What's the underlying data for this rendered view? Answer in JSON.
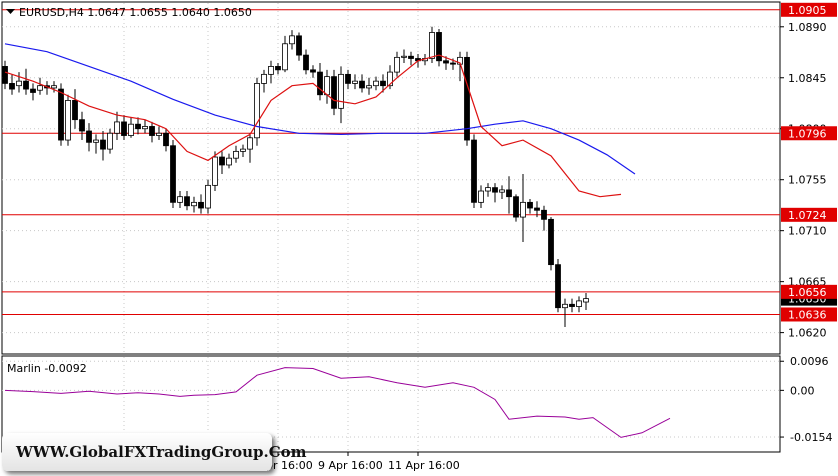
{
  "chart_window": {
    "symbol_info": "EURUSD,H4  1.0647 1.0655 1.0640 1.0650",
    "menu_arrow_icon": "triangle-down-icon"
  },
  "indicator": {
    "label": "Marlin -0.0092"
  },
  "watermark": "WWW.GlobalFXTradingGroup.Com",
  "colors": {
    "level_line": "#e00000",
    "level_box": "#e00000",
    "current_box": "#000000",
    "ma_slow": "#1a1aee",
    "ma_fast": "#dd1111",
    "oscillator": "#990099"
  },
  "chart_data": [
    {
      "type": "candlestick",
      "symbol": "EURUSD",
      "timeframe": "H4",
      "ohlc_last": {
        "open": 1.0647,
        "high": 1.0655,
        "low": 1.064,
        "close": 1.065
      },
      "ylim": [
        1.0602,
        1.0911
      ],
      "y_ticks": [
        "1.0890",
        "1.0845",
        "1.0800",
        "1.0755",
        "1.0710",
        "1.0665",
        "1.0620"
      ],
      "x_ticks": [
        {
          "index": 17,
          "label": "31 Mar 2023"
        },
        {
          "index": 29,
          "label": "3 Apr 16:00"
        },
        {
          "index": 39,
          "label": "5 Apr 16:00"
        },
        {
          "index": 49,
          "label": "9 Apr 16:00"
        },
        {
          "index": 59,
          "label": "11 Apr 16:00"
        }
      ],
      "levels": [
        {
          "value": 1.0905,
          "label": "1.0905"
        },
        {
          "value": 1.0796,
          "label": "1.0796"
        },
        {
          "value": 1.0724,
          "label": "1.0724"
        },
        {
          "value": 1.0656,
          "label": "1.0656"
        },
        {
          "value": 1.0636,
          "label": "1.0636"
        }
      ],
      "current_price": {
        "value": 1.065,
        "label": "1.0650"
      },
      "candles": [
        [
          1.0855,
          1.084,
          1.086,
          1.0835
        ],
        [
          1.084,
          1.0835,
          1.0848,
          1.083
        ],
        [
          1.0838,
          1.0842,
          1.085,
          1.0832
        ],
        [
          1.0842,
          1.0835,
          1.0853,
          1.083
        ],
        [
          1.0835,
          1.0832,
          1.084,
          1.0825
        ],
        [
          1.0834,
          1.0838,
          1.0845,
          1.083
        ],
        [
          1.0838,
          1.0836,
          1.0842,
          1.083
        ],
        [
          1.0836,
          1.0838,
          1.0842,
          1.0832
        ],
        [
          1.0835,
          1.079,
          1.084,
          1.0785
        ],
        [
          1.079,
          1.0825,
          1.083,
          1.0785
        ],
        [
          1.0825,
          1.0808,
          1.0835,
          1.08
        ],
        [
          1.0808,
          1.0798,
          1.0815,
          1.079
        ],
        [
          1.0798,
          1.0788,
          1.0805,
          1.078
        ],
        [
          1.0788,
          1.079,
          1.0795,
          1.0778
        ],
        [
          1.079,
          1.0782,
          1.0798,
          1.0772
        ],
        [
          1.0782,
          1.0796,
          1.08,
          1.0778
        ],
        [
          1.0796,
          1.0806,
          1.0815,
          1.079
        ],
        [
          1.0806,
          1.0794,
          1.0812,
          1.079
        ],
        [
          1.0794,
          1.0804,
          1.081,
          1.0792
        ],
        [
          1.0804,
          1.08,
          1.081,
          1.0795
        ],
        [
          1.08,
          1.0802,
          1.0808,
          1.0796
        ],
        [
          1.0802,
          1.0794,
          1.0806,
          1.0788
        ],
        [
          1.0794,
          1.0796,
          1.0802,
          1.079
        ],
        [
          1.0796,
          1.0785,
          1.08,
          1.078
        ],
        [
          1.0785,
          1.0735,
          1.079,
          1.073
        ],
        [
          1.0735,
          1.074,
          1.0745,
          1.073
        ],
        [
          1.074,
          1.0732,
          1.0745,
          1.0728
        ],
        [
          1.0732,
          1.0735,
          1.074,
          1.0726
        ],
        [
          1.0735,
          1.073,
          1.0742,
          1.0725
        ],
        [
          1.073,
          1.075,
          1.0755,
          1.0725
        ],
        [
          1.075,
          1.0775,
          1.078,
          1.0745
        ],
        [
          1.0775,
          1.0768,
          1.078,
          1.076
        ],
        [
          1.0768,
          1.0774,
          1.0778,
          1.0765
        ],
        [
          1.0774,
          1.078,
          1.0785,
          1.077
        ],
        [
          1.078,
          1.0782,
          1.0786,
          1.0775
        ],
        [
          1.0782,
          1.0792,
          1.0796,
          1.077
        ],
        [
          1.0792,
          1.084,
          1.0845,
          1.0785
        ],
        [
          1.084,
          1.0848,
          1.0852,
          1.0832
        ],
        [
          1.0848,
          1.0855,
          1.086,
          1.084
        ],
        [
          1.0855,
          1.0852,
          1.0858,
          1.0848
        ],
        [
          1.0852,
          1.0875,
          1.0882,
          1.085
        ],
        [
          1.0875,
          1.0882,
          1.0887,
          1.087
        ],
        [
          1.0882,
          1.0865,
          1.0885,
          1.086
        ],
        [
          1.0865,
          1.0852,
          1.087,
          1.0848
        ],
        [
          1.0852,
          1.085,
          1.0856,
          1.0845
        ],
        [
          1.085,
          1.083,
          1.0858,
          1.0825
        ],
        [
          1.083,
          1.0846,
          1.0852,
          1.0822
        ],
        [
          1.0846,
          1.0818,
          1.0852,
          1.0812
        ],
        [
          1.0818,
          1.0848,
          1.0855,
          1.0805
        ],
        [
          1.0848,
          1.084,
          1.0852,
          1.0835
        ],
        [
          1.084,
          1.0842,
          1.0848,
          1.0835
        ],
        [
          1.0842,
          1.0836,
          1.0848,
          1.0832
        ],
        [
          1.0836,
          1.0838,
          1.0845,
          1.083
        ],
        [
          1.0838,
          1.0842,
          1.0846,
          1.0834
        ],
        [
          1.0842,
          1.0838,
          1.0848,
          1.0832
        ],
        [
          1.0838,
          1.085,
          1.0856,
          1.0835
        ],
        [
          1.085,
          1.0863,
          1.0868,
          1.0846
        ],
        [
          1.0863,
          1.0864,
          1.087,
          1.0858
        ],
        [
          1.0864,
          1.0862,
          1.0868,
          1.0856
        ],
        [
          1.0862,
          1.086,
          1.0866,
          1.0854
        ],
        [
          1.086,
          1.0862,
          1.0866,
          1.0856
        ],
        [
          1.0862,
          1.0885,
          1.089,
          1.0858
        ],
        [
          1.0885,
          1.086,
          1.0888,
          1.0855
        ],
        [
          1.086,
          1.0858,
          1.0864,
          1.0852
        ],
        [
          1.0858,
          1.0857,
          1.0862,
          1.0852
        ],
        [
          1.0857,
          1.0863,
          1.0868,
          1.0842
        ],
        [
          1.0863,
          1.079,
          1.0868,
          1.0785
        ],
        [
          1.079,
          1.0735,
          1.0795,
          1.073
        ],
        [
          1.0735,
          1.0745,
          1.075,
          1.073
        ],
        [
          1.0745,
          1.0748,
          1.0752,
          1.074
        ],
        [
          1.0748,
          1.0744,
          1.0752,
          1.0735
        ],
        [
          1.0744,
          1.0746,
          1.075,
          1.0738
        ],
        [
          1.0746,
          1.074,
          1.0758,
          1.0725
        ],
        [
          1.074,
          1.0722,
          1.0742,
          1.0718
        ],
        [
          1.0722,
          1.0735,
          1.076,
          1.07
        ],
        [
          1.0735,
          1.073,
          1.0738,
          1.0725
        ],
        [
          1.073,
          1.0728,
          1.0736,
          1.0722
        ],
        [
          1.0728,
          1.072,
          1.0732,
          1.071
        ],
        [
          1.072,
          1.068,
          1.0722,
          1.0675
        ],
        [
          1.068,
          1.0642,
          1.0685,
          1.0638
        ],
        [
          1.0642,
          1.0645,
          1.065,
          1.0625
        ],
        [
          1.0645,
          1.0643,
          1.065,
          1.0638
        ],
        [
          1.0643,
          1.0648,
          1.0652,
          1.0638
        ],
        [
          1.0647,
          1.065,
          1.0655,
          1.064
        ]
      ],
      "ma_slow": [
        [
          0,
          1.0875
        ],
        [
          6,
          1.0868
        ],
        [
          12,
          1.0855
        ],
        [
          18,
          1.0842
        ],
        [
          24,
          1.0826
        ],
        [
          30,
          1.0812
        ],
        [
          36,
          1.0802
        ],
        [
          42,
          1.0796
        ],
        [
          48,
          1.0795
        ],
        [
          54,
          1.0796
        ],
        [
          60,
          1.0796
        ],
        [
          66,
          1.08
        ],
        [
          70,
          1.0804
        ],
        [
          74,
          1.0807
        ],
        [
          78,
          1.08
        ],
        [
          82,
          1.079
        ],
        [
          86,
          1.0777
        ],
        [
          90,
          1.076
        ]
      ],
      "ma_fast": [
        [
          0,
          1.085
        ],
        [
          4,
          1.0842
        ],
        [
          8,
          1.0832
        ],
        [
          12,
          1.082
        ],
        [
          16,
          1.0812
        ],
        [
          20,
          1.0808
        ],
        [
          23,
          1.08
        ],
        [
          26,
          1.078
        ],
        [
          29,
          1.0772
        ],
        [
          32,
          1.0785
        ],
        [
          35,
          1.0795
        ],
        [
          38,
          1.0825
        ],
        [
          41,
          1.0838
        ],
        [
          44,
          1.084
        ],
        [
          47,
          1.0825
        ],
        [
          50,
          1.0822
        ],
        [
          53,
          1.0828
        ],
        [
          56,
          1.0845
        ],
        [
          59,
          1.086
        ],
        [
          62,
          1.0865
        ],
        [
          65,
          1.0858
        ],
        [
          68,
          1.0802
        ],
        [
          71,
          1.0785
        ],
        [
          74,
          1.079
        ],
        [
          78,
          1.0776
        ],
        [
          82,
          1.0745
        ],
        [
          85,
          1.074
        ],
        [
          88,
          1.0742
        ]
      ]
    },
    {
      "type": "line",
      "name": "Marlin",
      "last_value": -0.0092,
      "ylim": [
        -0.02,
        0.011
      ],
      "y_ticks": [
        "0.0096",
        "0.00",
        "-0.0154"
      ],
      "points": [
        [
          0,
          0.0
        ],
        [
          4,
          -0.0004
        ],
        [
          8,
          -0.001
        ],
        [
          12,
          -0.0003
        ],
        [
          16,
          -0.0012
        ],
        [
          19,
          -0.0008
        ],
        [
          22,
          -0.0012
        ],
        [
          25,
          -0.002
        ],
        [
          27,
          -0.0016
        ],
        [
          30,
          -0.0014
        ],
        [
          33,
          -0.0005
        ],
        [
          36,
          0.005
        ],
        [
          40,
          0.0075
        ],
        [
          44,
          0.0072
        ],
        [
          48,
          0.004
        ],
        [
          52,
          0.0045
        ],
        [
          56,
          0.0025
        ],
        [
          60,
          0.001
        ],
        [
          64,
          0.0025
        ],
        [
          67,
          0.001
        ],
        [
          70,
          -0.003
        ],
        [
          72,
          -0.0095
        ],
        [
          76,
          -0.0085
        ],
        [
          80,
          -0.0088
        ],
        [
          82,
          -0.0095
        ],
        [
          84,
          -0.009
        ],
        [
          88,
          -0.0155
        ],
        [
          91,
          -0.014
        ],
        [
          95,
          -0.0092
        ]
      ]
    }
  ]
}
